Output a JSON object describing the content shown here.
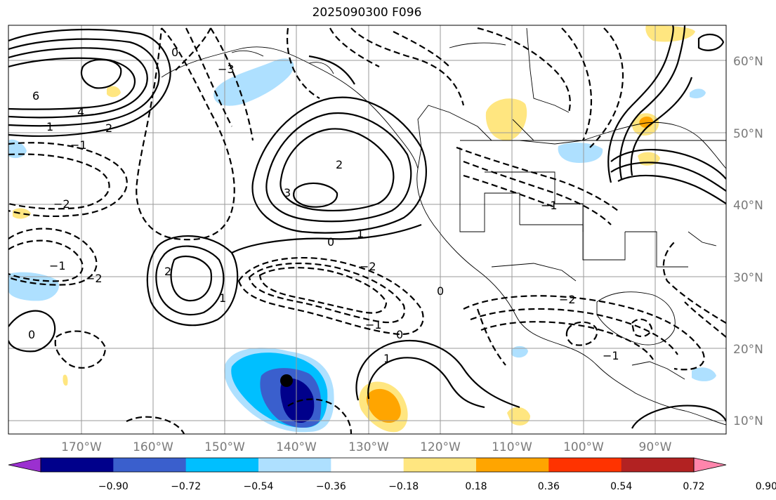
{
  "title": "2025090300 F096",
  "lat_labels": [
    "60°N",
    "50°N",
    "40°N",
    "30°N",
    "20°N",
    "10°N"
  ],
  "lon_labels": [
    "170°W",
    "160°W",
    "150°W",
    "140°W",
    "130°W",
    "120°W",
    "110°W",
    "100°W",
    "90°W"
  ],
  "colorbar": {
    "ticks": [
      "−0.90",
      "−0.72",
      "−0.54",
      "−0.36",
      "−0.18",
      "0.18",
      "0.36",
      "0.54",
      "0.72",
      "0.90"
    ],
    "colors": [
      "#9b30d0",
      "#00008b",
      "#3a5fcd",
      "#00bfff",
      "#aee0ff",
      "#ffffff",
      "#ffe680",
      "#ffa500",
      "#ff3300",
      "#b22222",
      "#ff85ac"
    ]
  },
  "contour_labels": [
    "6",
    "4",
    "2",
    "1",
    "0",
    "−1",
    "−2",
    "−3",
    "3",
    "2",
    "1",
    "0",
    "1",
    "2",
    "−2",
    "−1",
    "0",
    "−1",
    "−2",
    "0",
    "−1",
    "−2",
    "1",
    "0",
    "−1"
  ],
  "marker": {
    "lon": "141°W",
    "lat": "15°N"
  }
}
